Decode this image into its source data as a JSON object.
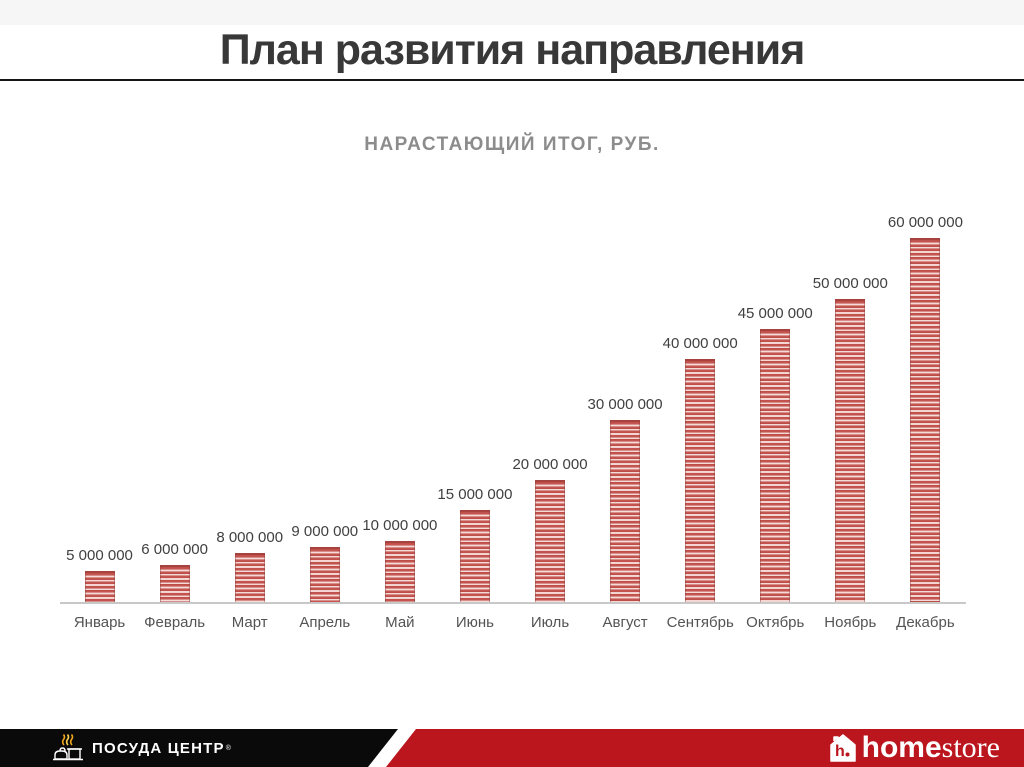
{
  "slide": {
    "title": "План развития направления"
  },
  "chart_data": {
    "type": "bar",
    "title": "НАРАСТАЮЩИЙ ИТОГ, РУБ.",
    "categories": [
      "Январь",
      "Февраль",
      "Март",
      "Апрель",
      "Май",
      "Июнь",
      "Июль",
      "Август",
      "Сентябрь",
      "Октябрь",
      "Ноябрь",
      "Декабрь"
    ],
    "values": [
      5000000,
      6000000,
      8000000,
      9000000,
      10000000,
      15000000,
      20000000,
      30000000,
      40000000,
      45000000,
      50000000,
      60000000
    ],
    "value_labels": [
      "5 000 000",
      "6 000 000",
      "8 000 000",
      "9 000 000",
      "10 000 000",
      "15 000 000",
      "20 000 000",
      "30 000 000",
      "40 000 000",
      "45 000 000",
      "50 000 000",
      "60 000 000"
    ],
    "xlabel": "",
    "ylabel": "",
    "ylim": [
      0,
      60000000
    ],
    "grid": false,
    "legend": false,
    "bar_color": "#bc4944",
    "bar_stripe_color": "#f0cac6"
  },
  "footer": {
    "left_logo": {
      "text": "ПОСУДА ЦЕНТР",
      "reg_mark": "®"
    },
    "right_logo": {
      "text_bold": "home",
      "text_serif": "store"
    },
    "colors": {
      "black_band": "#0a0a0a",
      "red_band": "#bb161e"
    }
  }
}
